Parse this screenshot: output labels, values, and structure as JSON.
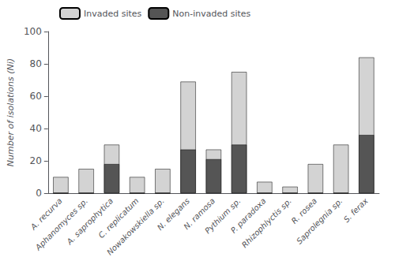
{
  "chart_data": {
    "type": "bar",
    "categories": [
      "A. recurva",
      "Aphanomyces sp.",
      "A. saprophytica",
      "C. replicatum",
      "Nowakowskiella sp.",
      "N. elegans",
      "N. ramosa",
      "Pythium sp.",
      "P. paradoxa",
      "Rhizophlyctis sp.",
      "R. rosea",
      "Saprolegnia sp.",
      "S. ferax"
    ],
    "series": [
      {
        "name": "Invaded sites",
        "color": "#d3d3d3",
        "values": [
          10,
          15,
          30,
          10,
          15,
          69,
          27,
          75,
          7,
          4,
          18,
          30,
          84
        ]
      },
      {
        "name": "Non-invaded sites",
        "color": "#555555",
        "values": [
          0,
          0,
          18,
          0,
          0,
          27,
          21,
          30,
          0,
          0,
          0,
          0,
          36
        ]
      }
    ],
    "ylabel": "Number of isolations (Ni)",
    "ylim": [
      0,
      100
    ],
    "yticks": [
      0,
      20,
      40,
      60,
      80,
      100
    ],
    "grid": false,
    "legend": "upper left",
    "stacked": false
  }
}
